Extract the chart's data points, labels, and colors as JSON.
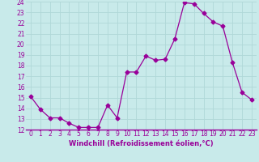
{
  "x": [
    0,
    1,
    2,
    3,
    4,
    5,
    6,
    7,
    8,
    9,
    10,
    11,
    12,
    13,
    14,
    15,
    16,
    17,
    18,
    19,
    20,
    21,
    22,
    23
  ],
  "y": [
    15.1,
    13.9,
    13.1,
    13.1,
    12.6,
    12.2,
    12.2,
    12.2,
    14.3,
    13.1,
    17.4,
    17.4,
    18.9,
    18.5,
    18.6,
    20.5,
    23.9,
    23.8,
    22.9,
    22.1,
    21.7,
    18.3,
    15.5,
    14.8
  ],
  "line_color": "#990099",
  "marker": "D",
  "marker_size": 2.5,
  "bg_color": "#c8eaea",
  "grid_color": "#b0d8d8",
  "xlabel": "Windchill (Refroidissement éolien,°C)",
  "xlabel_color": "#990099",
  "tick_color": "#990099",
  "ylim": [
    12,
    24
  ],
  "xlim": [
    -0.5,
    23.5
  ],
  "yticks": [
    12,
    13,
    14,
    15,
    16,
    17,
    18,
    19,
    20,
    21,
    22,
    23,
    24
  ],
  "xticks": [
    0,
    1,
    2,
    3,
    4,
    5,
    6,
    7,
    8,
    9,
    10,
    11,
    12,
    13,
    14,
    15,
    16,
    17,
    18,
    19,
    20,
    21,
    22,
    23
  ],
  "xtick_labels": [
    "0",
    "1",
    "2",
    "3",
    "4",
    "5",
    "6",
    "7",
    "8",
    "9",
    "10",
    "11",
    "12",
    "13",
    "14",
    "15",
    "16",
    "17",
    "18",
    "19",
    "20",
    "21",
    "22",
    "23"
  ],
  "ytick_labels": [
    "12",
    "13",
    "14",
    "15",
    "16",
    "17",
    "18",
    "19",
    "20",
    "21",
    "22",
    "23",
    "24"
  ],
  "tick_fontsize": 5.5,
  "label_fontsize": 6.0
}
